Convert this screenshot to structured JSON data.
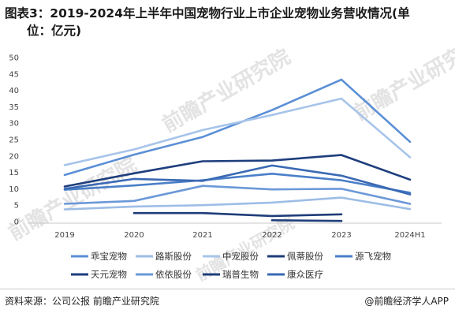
{
  "title_line1": "图表3：2019-2024年上半年中国宠物行业上市企业宠物业务营收情况(单",
  "title_line2": "位：亿元)",
  "watermark": "前瞻产业研究院",
  "source": "资料来源：公司公报 前瞻产业研究院",
  "brand": "@前瞻经济学人APP",
  "chart_data": {
    "type": "line",
    "x": [
      "2019",
      "2020",
      "2021",
      "2022",
      "2023",
      "2024H1"
    ],
    "ylim": [
      0,
      50
    ],
    "yticks": [
      0,
      5,
      10,
      15,
      20,
      25,
      30,
      35,
      40,
      45,
      50
    ],
    "grid": false,
    "legend_position": "bottom",
    "series": [
      {
        "name": "乖宝宠物",
        "color": "#5b8fd6",
        "values": [
          14.2,
          20.4,
          25.8,
          34.0,
          43.3,
          24.3
        ]
      },
      {
        "name": "路斯股份",
        "color": "#9dbde6",
        "values": [
          3.7,
          4.6,
          5.0,
          5.8,
          7.3,
          3.8
        ]
      },
      {
        "name": "中宠股份",
        "color": "#a7c4ea",
        "values": [
          17.2,
          22.0,
          27.9,
          32.5,
          37.5,
          19.6
        ]
      },
      {
        "name": "佩蒂股份",
        "color": "#1f3d78",
        "values": [
          null,
          2.6,
          2.6,
          1.7,
          2.2,
          null
        ]
      },
      {
        "name": "源飞宠物",
        "color": "#4a7fc8",
        "values": [
          9.7,
          11.0,
          12.6,
          14.6,
          12.6,
          8.8
        ]
      },
      {
        "name": "天元宠物",
        "color": "#1e3e7d",
        "values": [
          10.7,
          14.7,
          18.4,
          18.6,
          20.3,
          12.8
        ]
      },
      {
        "name": "依依股份",
        "color": "#6b98d8",
        "values": [
          5.4,
          6.3,
          10.9,
          9.8,
          10.0,
          5.4
        ]
      },
      {
        "name": "瑞普生物",
        "color": "#1f3f7a",
        "values": [
          null,
          null,
          null,
          0.4,
          0.2,
          null
        ]
      },
      {
        "name": "康众医疗",
        "color": "#3a69b4",
        "values": [
          10.0,
          13.0,
          12.4,
          17.1,
          14.0,
          8.3
        ]
      }
    ]
  }
}
